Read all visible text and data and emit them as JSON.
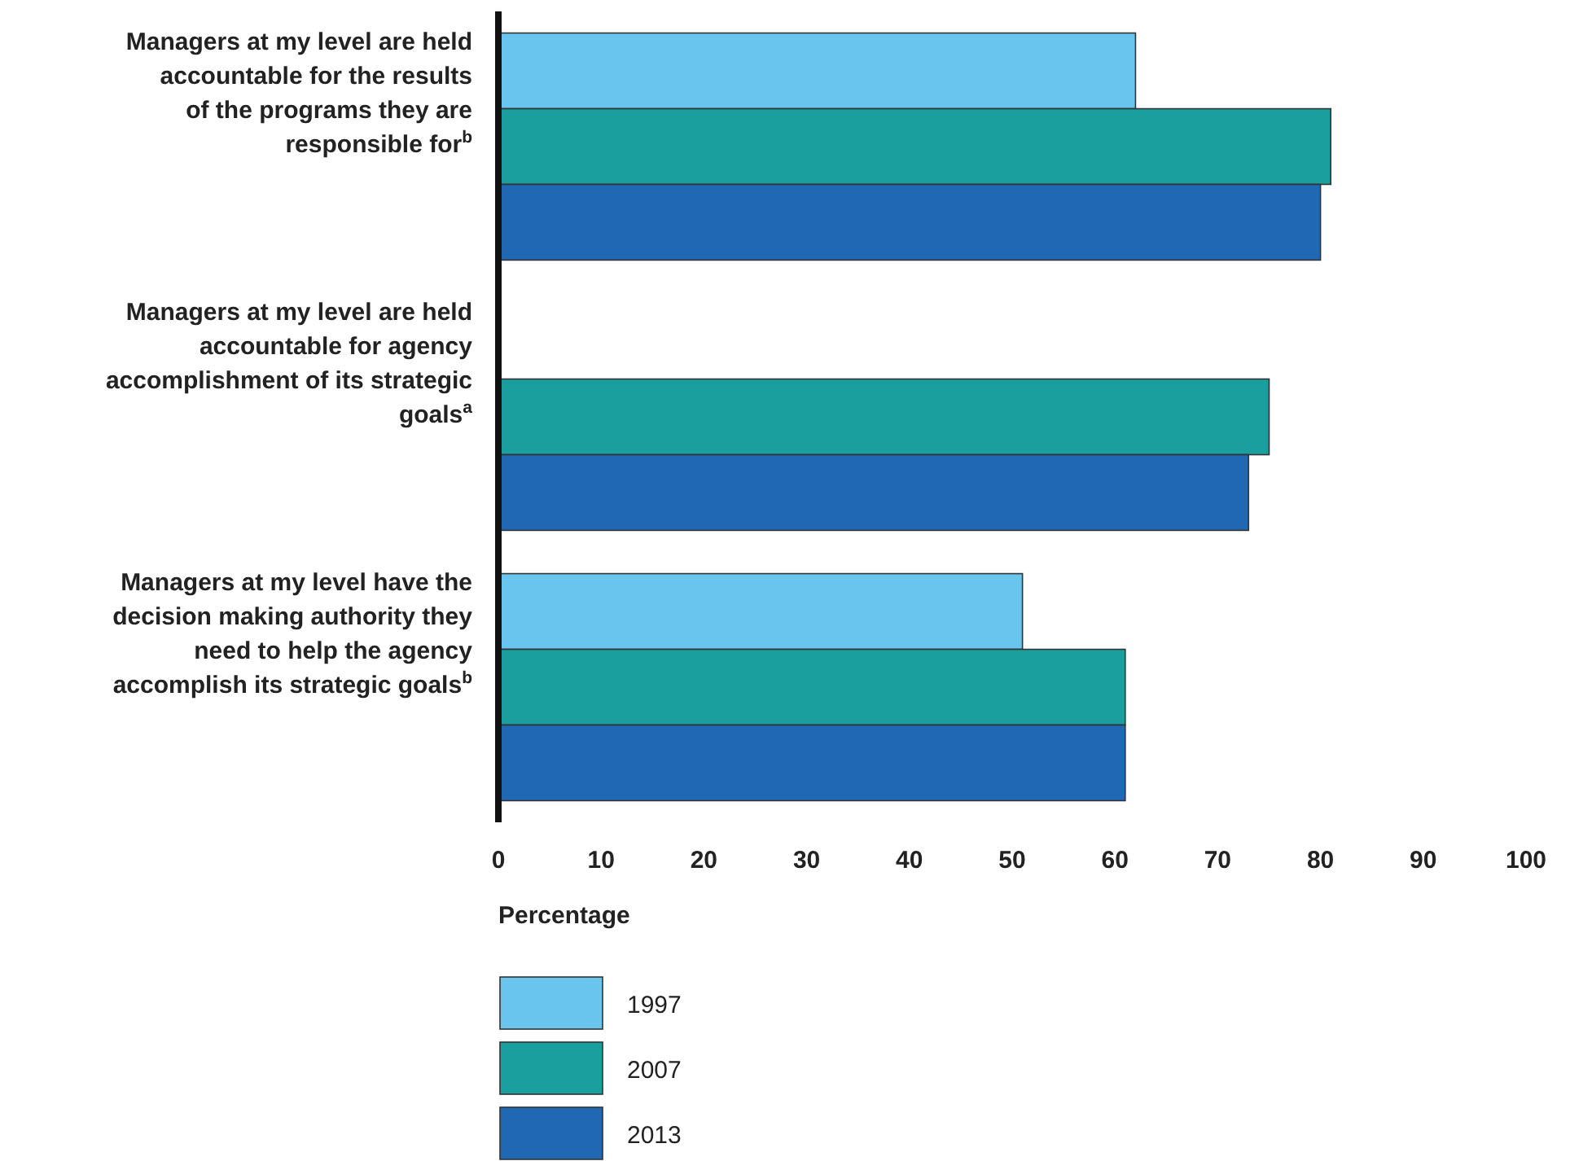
{
  "chart_data": {
    "type": "bar",
    "orientation": "horizontal",
    "categories": [
      "Managers at my level are held\naccountable for the results\nof the programs they are\nresponsible for$^{b}$",
      "Managers at my level are held\naccountable for agency\naccomplishment of its strategic\ngoals$^{a}$",
      "Managers at my level have the\ndecision making authority they\nneed to help the agency\naccomplish its strategic goals$^{b}$"
    ],
    "series": [
      {
        "name": "1997",
        "color": "#6ac5ee",
        "values": [
          62,
          null,
          51
        ]
      },
      {
        "name": "2007",
        "color": "#1a9e9e",
        "values": [
          81,
          75,
          61
        ]
      },
      {
        "name": "2013",
        "color": "#2168b4",
        "values": [
          80,
          73,
          61
        ]
      }
    ],
    "xlabel": "Percentage",
    "xlim": [
      0,
      100
    ],
    "xticks": [
      0,
      10,
      20,
      30,
      40,
      50,
      60,
      70,
      80,
      90,
      100
    ],
    "grid": false,
    "legend": "bottom"
  }
}
